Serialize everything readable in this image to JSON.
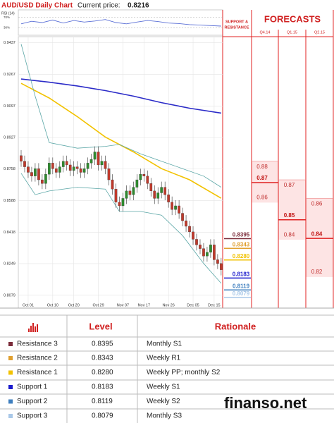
{
  "chart_data": {
    "type": "candlestick",
    "title": "AUD/USD Daily Chart",
    "current_price_label": "Current price:",
    "current_price": 0.8216,
    "categories": [
      null,
      null,
      "Oct 01",
      null,
      null,
      null,
      null,
      null,
      null,
      "Oct 10",
      null,
      null,
      null,
      null,
      null,
      "Oct 20",
      null,
      null,
      null,
      null,
      null,
      null,
      "Oct 29",
      null,
      null,
      null,
      null,
      null,
      null,
      "Nov 07",
      null,
      null,
      null,
      null,
      null,
      "Nov 17",
      null,
      null,
      null,
      null,
      null,
      null,
      "Nov 26",
      null,
      null,
      null,
      null,
      null,
      null,
      "Dec 05",
      null,
      null,
      null,
      null,
      null,
      "Dec 15",
      null,
      null
    ],
    "open": [
      0.883,
      0.88,
      0.877,
      0.874,
      0.872,
      0.876,
      0.87,
      0.868,
      0.873,
      0.879,
      0.876,
      0.874,
      0.877,
      0.88,
      0.878,
      0.875,
      0.877,
      0.876,
      0.874,
      0.876,
      0.879,
      0.881,
      0.885,
      0.878,
      0.88,
      0.876,
      0.87,
      0.865,
      0.858,
      0.856,
      0.86,
      0.864,
      0.862,
      0.866,
      0.87,
      0.873,
      0.872,
      0.868,
      0.864,
      0.86,
      0.863,
      0.866,
      0.862,
      0.858,
      0.854,
      0.856,
      0.852,
      0.848,
      0.845,
      0.842,
      0.838,
      0.835,
      0.833,
      0.829,
      0.831,
      0.835,
      0.827,
      0.825
    ],
    "high": [
      0.886,
      0.883,
      0.88,
      0.877,
      0.879,
      0.879,
      0.873,
      0.876,
      0.882,
      0.882,
      0.879,
      0.88,
      0.883,
      0.883,
      0.881,
      0.88,
      0.88,
      0.879,
      0.879,
      0.882,
      0.884,
      0.888,
      0.888,
      0.883,
      0.883,
      0.879,
      0.873,
      0.868,
      0.861,
      0.863,
      0.867,
      0.867,
      0.869,
      0.873,
      0.876,
      0.876,
      0.875,
      0.871,
      0.867,
      0.866,
      0.869,
      0.869,
      0.865,
      0.861,
      0.859,
      0.859,
      0.855,
      0.851,
      0.848,
      0.845,
      0.841,
      0.838,
      0.836,
      0.834,
      0.838,
      0.838,
      0.83,
      0.828
    ],
    "low": [
      0.877,
      0.874,
      0.871,
      0.869,
      0.869,
      0.867,
      0.865,
      0.865,
      0.87,
      0.873,
      0.871,
      0.871,
      0.874,
      0.875,
      0.872,
      0.872,
      0.873,
      0.871,
      0.871,
      0.873,
      0.876,
      0.878,
      0.875,
      0.875,
      0.873,
      0.867,
      0.862,
      0.855,
      0.853,
      0.853,
      0.857,
      0.859,
      0.859,
      0.863,
      0.867,
      0.869,
      0.865,
      0.861,
      0.857,
      0.857,
      0.86,
      0.859,
      0.855,
      0.851,
      0.851,
      0.849,
      0.845,
      0.842,
      0.839,
      0.835,
      0.832,
      0.83,
      0.826,
      0.826,
      0.828,
      0.824,
      0.822,
      0.8186
    ],
    "close": [
      0.88,
      0.877,
      0.874,
      0.872,
      0.876,
      0.87,
      0.868,
      0.873,
      0.879,
      0.876,
      0.874,
      0.877,
      0.88,
      0.878,
      0.875,
      0.877,
      0.876,
      0.874,
      0.876,
      0.879,
      0.881,
      0.885,
      0.878,
      0.88,
      0.876,
      0.87,
      0.865,
      0.858,
      0.856,
      0.86,
      0.864,
      0.862,
      0.866,
      0.87,
      0.873,
      0.872,
      0.868,
      0.864,
      0.86,
      0.863,
      0.866,
      0.862,
      0.858,
      0.854,
      0.856,
      0.852,
      0.848,
      0.845,
      0.842,
      0.838,
      0.835,
      0.833,
      0.829,
      0.831,
      0.835,
      0.827,
      0.825,
      0.8216
    ],
    "up_color": "#2e8b2e",
    "down_color": "#c0392b",
    "lines": [
      {
        "color": "#2b2bc8",
        "x": [
          0,
          8,
          16,
          24,
          32,
          40,
          48,
          57
        ],
        "values": [
          0.9242,
          0.9225,
          0.9205,
          0.918,
          0.915,
          0.9115,
          0.9085,
          0.9059
        ]
      },
      {
        "color": "#f2c200",
        "x": [
          0,
          8,
          16,
          24,
          32,
          40,
          48,
          57
        ],
        "values": [
          0.9219,
          0.914,
          0.904,
          0.893,
          0.885,
          0.876,
          0.87,
          0.8601
        ]
      },
      {
        "color": "#5aa6a6",
        "x": [
          0,
          4,
          8,
          16,
          24,
          28,
          34,
          40,
          46,
          52,
          57
        ],
        "values": [
          0.943,
          0.915,
          0.89,
          0.887,
          0.888,
          0.889,
          0.884,
          0.88,
          0.876,
          0.872,
          0.866
        ]
      },
      {
        "color": "#5aa6a6",
        "x": [
          0,
          4,
          8,
          16,
          24,
          28,
          34,
          40,
          46,
          52,
          57
        ],
        "values": [
          0.8735,
          0.862,
          0.864,
          0.866,
          0.865,
          0.853,
          0.853,
          0.851,
          0.84,
          0.825,
          0.8143
        ]
      }
    ],
    "ylim": [
      0.801,
      0.947
    ],
    "yticks": [
      0.9437,
      0.9267,
      0.9097,
      0.8927,
      0.8758,
      0.8588,
      0.8418,
      0.8249,
      0.8079
    ],
    "grid": true,
    "rsi": {
      "title": "RSI (14)",
      "color": "#5a6fd6",
      "ylim": [
        0,
        100
      ],
      "yticks": [
        {
          "value": 70,
          "label": "70%"
        },
        {
          "value": 30,
          "label": "30%"
        }
      ],
      "x": [
        0,
        3,
        6,
        9,
        12,
        15,
        18,
        21,
        24,
        27,
        30,
        33,
        36,
        39,
        42,
        45,
        48,
        51,
        54,
        57
      ],
      "values": [
        45,
        55,
        50,
        60,
        48,
        58,
        52,
        56,
        62,
        50,
        45,
        52,
        58,
        54,
        48,
        46,
        42,
        40,
        38,
        36
      ]
    },
    "levels": {
      "names": [
        "Resistance 3",
        "Resistance 2",
        "Resistance 1",
        "Support 1",
        "Support 2",
        "Support 3"
      ],
      "values": [
        0.8395,
        0.8343,
        0.828,
        0.8183,
        0.8119,
        0.8079
      ],
      "value_labels": [
        "0.8395",
        "0.8343",
        "0.8280",
        "0.8183",
        "0.8119",
        "0.8079"
      ],
      "colors": [
        "#7b2c3a",
        "#e0a030",
        "#f2c200",
        "#1a1acc",
        "#3f7fbf",
        "#a9c8e8"
      ]
    },
    "sr_header": [
      "SUPPORT &",
      "RESISTANCE"
    ],
    "forecasts": {
      "title": "FORECASTS",
      "columns": [
        {
          "name": "Q4.14",
          "high": 0.88,
          "mid": 0.87,
          "low": 0.86
        },
        {
          "name": "Q1.15",
          "high": 0.87,
          "mid": 0.85,
          "low": 0.84
        },
        {
          "name": "Q2.15",
          "high": 0.86,
          "mid": 0.84,
          "low": 0.82
        }
      ]
    }
  },
  "table": {
    "headers": [
      "Level",
      "Rationale"
    ],
    "rationale": [
      "Monthly S1",
      "Weekly R1",
      "Weekly PP; monthly S2",
      "Weekly S1",
      "Weekly S2",
      "Monthly S3"
    ]
  },
  "watermark": "finanso.net"
}
